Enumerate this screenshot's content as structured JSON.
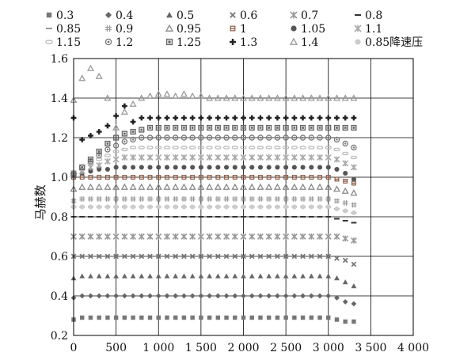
{
  "chart_data": {
    "type": "scatter",
    "title": "",
    "xlabel": "",
    "ylabel": "马赫数",
    "xlim": [
      0,
      4000
    ],
    "ylim": [
      0.2,
      1.6
    ],
    "xticks": [
      0,
      500,
      1000,
      1500,
      2000,
      2500,
      3000,
      3500,
      4000
    ],
    "xtick_labels": [
      "0",
      "500",
      "1 000",
      "1 500",
      "2 000",
      "2 500",
      "3 000",
      "3 500",
      "4 000"
    ],
    "yticks": [
      0.2,
      0.4,
      0.6,
      0.8,
      1.0,
      1.2,
      1.4,
      1.6
    ],
    "ytick_labels": [
      "0.2",
      "0.4",
      "0.6",
      "0.8",
      "1.0",
      "1.2",
      "1.4",
      "1.6"
    ],
    "grid": true,
    "legend_position": "top",
    "x": [
      0,
      100,
      200,
      300,
      400,
      500,
      600,
      700,
      800,
      900,
      1000,
      1100,
      1200,
      1300,
      1400,
      1500,
      1600,
      1700,
      1800,
      1900,
      2000,
      2100,
      2200,
      2300,
      2400,
      2500,
      2600,
      2700,
      2800,
      2900,
      3000,
      3100,
      3200,
      3300
    ],
    "series": [
      {
        "name": "0.3",
        "marker": "square",
        "color": "#777777",
        "values": [
          0.28,
          0.29,
          0.29,
          0.29,
          0.29,
          0.29,
          0.29,
          0.29,
          0.29,
          0.29,
          0.29,
          0.29,
          0.29,
          0.29,
          0.29,
          0.29,
          0.29,
          0.29,
          0.29,
          0.29,
          0.29,
          0.29,
          0.29,
          0.29,
          0.29,
          0.29,
          0.29,
          0.29,
          0.29,
          0.29,
          0.29,
          0.28,
          0.27,
          0.27
        ]
      },
      {
        "name": "0.4",
        "marker": "diamond",
        "color": "#666666",
        "values": [
          0.39,
          0.4,
          0.4,
          0.4,
          0.4,
          0.4,
          0.4,
          0.4,
          0.4,
          0.4,
          0.4,
          0.4,
          0.4,
          0.4,
          0.4,
          0.4,
          0.4,
          0.4,
          0.4,
          0.4,
          0.4,
          0.4,
          0.4,
          0.4,
          0.4,
          0.4,
          0.4,
          0.4,
          0.4,
          0.4,
          0.4,
          0.39,
          0.37,
          0.36
        ]
      },
      {
        "name": "0.5",
        "marker": "triangle",
        "color": "#666666",
        "values": [
          0.49,
          0.5,
          0.5,
          0.5,
          0.5,
          0.5,
          0.5,
          0.5,
          0.5,
          0.5,
          0.5,
          0.5,
          0.5,
          0.5,
          0.5,
          0.5,
          0.5,
          0.5,
          0.5,
          0.5,
          0.5,
          0.5,
          0.5,
          0.5,
          0.5,
          0.5,
          0.5,
          0.5,
          0.5,
          0.5,
          0.5,
          0.49,
          0.47,
          0.45
        ]
      },
      {
        "name": "0.6",
        "marker": "x",
        "color": "#777777",
        "values": [
          0.6,
          0.6,
          0.6,
          0.6,
          0.6,
          0.6,
          0.6,
          0.6,
          0.6,
          0.6,
          0.6,
          0.6,
          0.6,
          0.6,
          0.6,
          0.6,
          0.6,
          0.6,
          0.6,
          0.6,
          0.6,
          0.6,
          0.6,
          0.6,
          0.6,
          0.6,
          0.6,
          0.6,
          0.6,
          0.6,
          0.6,
          0.59,
          0.58,
          0.56
        ]
      },
      {
        "name": "0.7",
        "marker": "asterisk",
        "color": "#999999",
        "values": [
          0.7,
          0.7,
          0.7,
          0.7,
          0.7,
          0.7,
          0.7,
          0.7,
          0.7,
          0.7,
          0.7,
          0.7,
          0.7,
          0.7,
          0.7,
          0.7,
          0.7,
          0.7,
          0.7,
          0.7,
          0.7,
          0.7,
          0.7,
          0.7,
          0.7,
          0.7,
          0.7,
          0.7,
          0.7,
          0.7,
          0.7,
          0.7,
          0.69,
          0.68
        ]
      },
      {
        "name": "0.8",
        "marker": "dash",
        "color": "#333333",
        "values": [
          0.8,
          0.8,
          0.8,
          0.8,
          0.8,
          0.8,
          0.8,
          0.8,
          0.8,
          0.8,
          0.8,
          0.8,
          0.8,
          0.8,
          0.8,
          0.8,
          0.8,
          0.8,
          0.8,
          0.8,
          0.8,
          0.8,
          0.8,
          0.8,
          0.8,
          0.8,
          0.8,
          0.8,
          0.8,
          0.8,
          0.8,
          0.79,
          0.78,
          0.77
        ]
      },
      {
        "name": "0.85",
        "marker": "dash",
        "color": "#999999",
        "values": [
          0.85,
          0.85,
          0.85,
          0.85,
          0.85,
          0.85,
          0.85,
          0.85,
          0.85,
          0.85,
          0.85,
          0.85,
          0.85,
          0.85,
          0.85,
          0.85,
          0.85,
          0.85,
          0.85,
          0.85,
          0.85,
          0.85,
          0.85,
          0.85,
          0.85,
          0.85,
          0.85,
          0.85,
          0.85,
          0.85,
          0.85,
          0.84,
          0.83,
          0.82
        ]
      },
      {
        "name": "0.9",
        "marker": "hash",
        "color": "#999999",
        "values": [
          0.88,
          0.89,
          0.89,
          0.89,
          0.89,
          0.89,
          0.89,
          0.89,
          0.89,
          0.89,
          0.89,
          0.89,
          0.89,
          0.89,
          0.89,
          0.89,
          0.89,
          0.89,
          0.89,
          0.89,
          0.89,
          0.89,
          0.89,
          0.89,
          0.89,
          0.89,
          0.89,
          0.89,
          0.89,
          0.89,
          0.89,
          0.88,
          0.87,
          0.86
        ]
      },
      {
        "name": "0.95",
        "marker": "triangle-open",
        "color": "#888888",
        "values": [
          0.94,
          0.95,
          0.95,
          0.95,
          0.95,
          0.95,
          0.95,
          0.95,
          0.95,
          0.95,
          0.95,
          0.95,
          0.95,
          0.95,
          0.95,
          0.95,
          0.95,
          0.95,
          0.95,
          0.95,
          0.95,
          0.95,
          0.95,
          0.95,
          0.95,
          0.95,
          0.95,
          0.95,
          0.95,
          0.95,
          0.95,
          0.94,
          0.93,
          0.92
        ]
      },
      {
        "name": "1",
        "marker": "bar-icon",
        "color": "#8a5a44",
        "values": [
          1.0,
          1.0,
          1.0,
          1.0,
          1.0,
          1.0,
          1.0,
          1.0,
          1.0,
          1.0,
          1.0,
          1.0,
          1.0,
          1.0,
          1.0,
          1.0,
          1.0,
          1.0,
          1.0,
          1.0,
          1.0,
          1.0,
          1.0,
          1.0,
          1.0,
          1.0,
          1.0,
          1.0,
          1.0,
          1.0,
          1.0,
          0.99,
          0.98,
          0.97
        ]
      },
      {
        "name": "1.05",
        "marker": "circle",
        "color": "#555555",
        "values": [
          1.01,
          1.02,
          1.03,
          1.04,
          1.04,
          1.05,
          1.05,
          1.05,
          1.05,
          1.05,
          1.05,
          1.05,
          1.05,
          1.05,
          1.05,
          1.05,
          1.05,
          1.05,
          1.05,
          1.05,
          1.05,
          1.05,
          1.05,
          1.05,
          1.05,
          1.05,
          1.05,
          1.05,
          1.05,
          1.05,
          1.05,
          1.04,
          1.02,
          0.99
        ]
      },
      {
        "name": "1.1",
        "marker": "asterisk",
        "color": "#aaaaaa",
        "values": [
          1.02,
          1.03,
          1.05,
          1.06,
          1.08,
          1.09,
          1.1,
          1.1,
          1.1,
          1.1,
          1.1,
          1.1,
          1.1,
          1.1,
          1.1,
          1.1,
          1.1,
          1.1,
          1.1,
          1.1,
          1.1,
          1.1,
          1.1,
          1.1,
          1.1,
          1.1,
          1.1,
          1.1,
          1.1,
          1.1,
          1.1,
          1.09,
          1.07,
          1.05
        ]
      },
      {
        "name": "1.15",
        "marker": "pill",
        "color": "#bbbbbb",
        "values": [
          1.02,
          1.04,
          1.07,
          1.09,
          1.11,
          1.13,
          1.14,
          1.15,
          1.15,
          1.15,
          1.15,
          1.15,
          1.15,
          1.15,
          1.15,
          1.15,
          1.15,
          1.15,
          1.15,
          1.15,
          1.15,
          1.15,
          1.15,
          1.15,
          1.15,
          1.15,
          1.15,
          1.15,
          1.15,
          1.15,
          1.15,
          1.14,
          1.12,
          1.1
        ]
      },
      {
        "name": "1.2",
        "marker": "circle-dot",
        "color": "#777777",
        "values": [
          1.02,
          1.05,
          1.08,
          1.11,
          1.14,
          1.16,
          1.18,
          1.19,
          1.2,
          1.2,
          1.2,
          1.2,
          1.2,
          1.2,
          1.2,
          1.2,
          1.2,
          1.2,
          1.2,
          1.2,
          1.2,
          1.2,
          1.2,
          1.2,
          1.2,
          1.2,
          1.2,
          1.2,
          1.2,
          1.2,
          1.2,
          1.19,
          1.17,
          1.15
        ]
      },
      {
        "name": "1.25",
        "marker": "square-dot",
        "color": "#666666",
        "values": [
          1.01,
          1.05,
          1.09,
          1.13,
          1.17,
          1.2,
          1.22,
          1.23,
          1.24,
          1.25,
          1.25,
          1.25,
          1.25,
          1.25,
          1.25,
          1.25,
          1.25,
          1.25,
          1.25,
          1.25,
          1.25,
          1.25,
          1.25,
          1.25,
          1.25,
          1.25,
          1.25,
          1.25,
          1.25,
          1.25,
          1.25,
          1.25,
          1.25,
          1.25
        ]
      },
      {
        "name": "1.3",
        "marker": "plus",
        "color": "#222222",
        "values": [
          1.3,
          1.19,
          1.21,
          1.23,
          1.26,
          1.31,
          1.36,
          1.28,
          1.3,
          1.3,
          1.3,
          1.3,
          1.3,
          1.3,
          1.3,
          1.3,
          1.3,
          1.3,
          1.3,
          1.3,
          1.3,
          1.3,
          1.3,
          1.3,
          1.3,
          1.3,
          1.3,
          1.3,
          1.3,
          1.3,
          1.3,
          1.3,
          1.3,
          1.3
        ]
      },
      {
        "name": "1.4",
        "marker": "triangle-open",
        "color": "#999999",
        "values": [
          1.39,
          1.5,
          1.55,
          1.51,
          1.4,
          1.25,
          1.33,
          1.37,
          1.4,
          1.41,
          1.42,
          1.42,
          1.41,
          1.42,
          1.41,
          1.41,
          1.4,
          1.4,
          1.4,
          1.4,
          1.4,
          1.4,
          1.4,
          1.4,
          1.4,
          1.4,
          1.4,
          1.4,
          1.4,
          1.4,
          1.4,
          1.4,
          1.4,
          1.4
        ]
      },
      {
        "name": "0.85降速压",
        "marker": "circle",
        "color": "#cccccc",
        "values": [
          0.85,
          0.85,
          0.85,
          0.85,
          0.85,
          0.85,
          0.85,
          0.85,
          0.85,
          0.85,
          0.85,
          0.85,
          0.85,
          0.85,
          0.85,
          0.85,
          0.85,
          0.85,
          0.85,
          0.85,
          0.85,
          0.85,
          0.85,
          0.85,
          0.85,
          0.85,
          0.85,
          0.85,
          0.85,
          0.85,
          0.85,
          0.84,
          0.83,
          0.82
        ]
      }
    ]
  }
}
